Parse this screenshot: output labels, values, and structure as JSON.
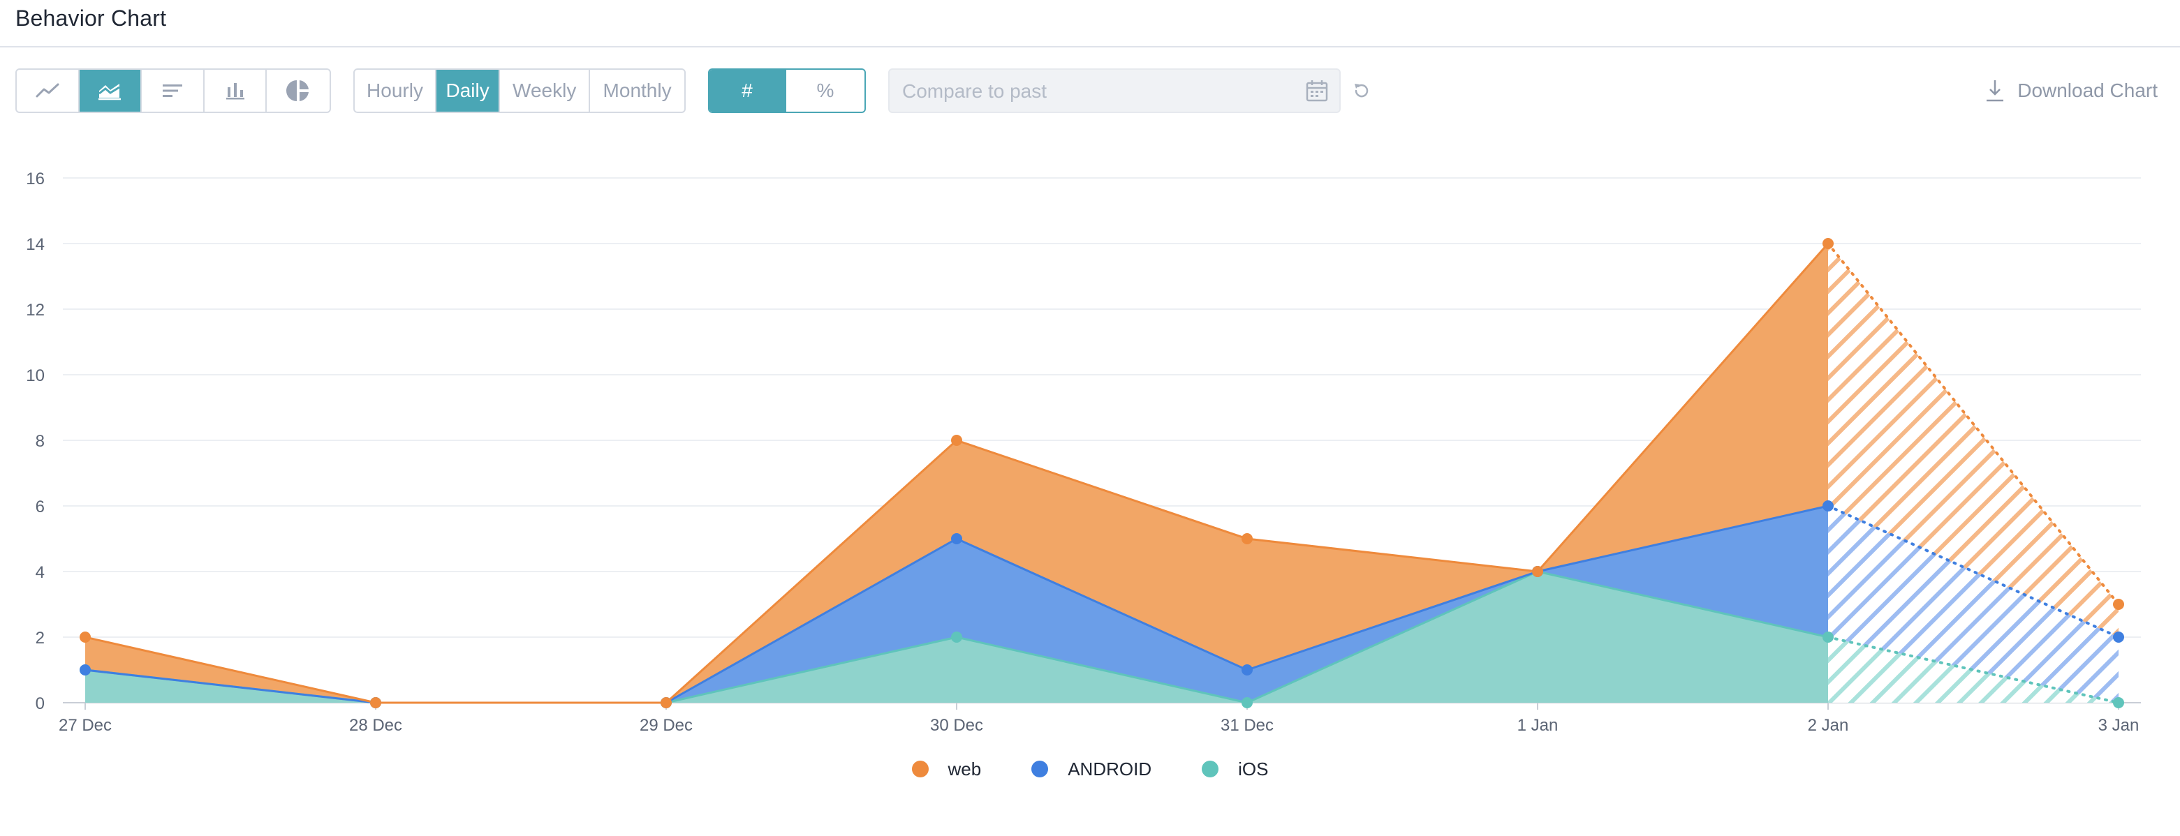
{
  "header": {
    "title": "Behavior Chart"
  },
  "toolbar": {
    "chart_types": [
      {
        "name": "line-chart-button",
        "icon": "line-chart-icon",
        "active": false
      },
      {
        "name": "area-chart-button",
        "icon": "area-chart-icon",
        "active": true
      },
      {
        "name": "horizontal-bar-button",
        "icon": "horizontal-bar-icon",
        "active": false
      },
      {
        "name": "bar-chart-button",
        "icon": "bar-chart-icon",
        "active": false
      },
      {
        "name": "pie-chart-button",
        "icon": "pie-chart-icon",
        "active": false
      }
    ],
    "periods": [
      "Hourly",
      "Daily",
      "Weekly",
      "Monthly"
    ],
    "active_period": "Daily",
    "units": [
      "#",
      "%"
    ],
    "active_unit": "#",
    "compare_placeholder": "Compare to past",
    "download_label": "Download Chart"
  },
  "colors": {
    "accent": "#4aa6b5",
    "web": "#ee8a3c",
    "android": "#3f7fe0",
    "ios": "#5fc4bb"
  },
  "chart_data": {
    "type": "area",
    "stacked": true,
    "title": "Behavior Chart",
    "categories": [
      "27 Dec",
      "28 Dec",
      "29 Dec",
      "30 Dec",
      "31 Dec",
      "1 Jan",
      "2 Jan",
      "3 Jan"
    ],
    "ylim": [
      0,
      16
    ],
    "yticks": [
      0,
      2,
      4,
      6,
      8,
      10,
      12,
      14,
      16
    ],
    "grid": true,
    "legend": "bottom",
    "incomplete_from_index": 6,
    "series": [
      {
        "name": "iOS",
        "values": [
          1,
          0,
          0,
          2,
          0,
          4,
          2,
          0
        ],
        "stacked_totals": [
          1,
          0,
          0,
          2,
          0,
          4,
          2,
          0
        ]
      },
      {
        "name": "ANDROID",
        "values": [
          0,
          0,
          0,
          3,
          1,
          0,
          4,
          2
        ],
        "stacked_totals": [
          1,
          0,
          0,
          5,
          1,
          4,
          6,
          2
        ]
      },
      {
        "name": "web",
        "values": [
          1,
          0,
          0,
          3,
          4,
          0,
          8,
          1
        ],
        "stacked_totals": [
          2,
          0,
          0,
          8,
          5,
          4,
          14,
          3
        ]
      }
    ]
  },
  "legend": [
    {
      "label": "web",
      "color": "#ee8a3c"
    },
    {
      "label": "ANDROID",
      "color": "#3f7fe0"
    },
    {
      "label": "iOS",
      "color": "#5fc4bb"
    }
  ]
}
